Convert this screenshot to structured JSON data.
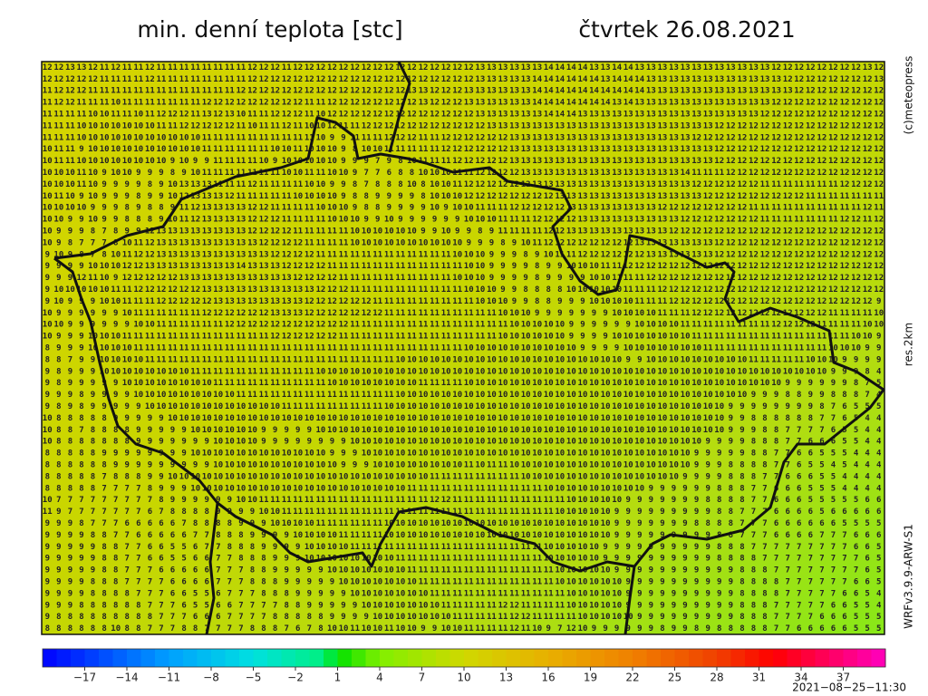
{
  "header": {
    "title": "min. denní teplota [stc]",
    "date": "čtvrtek 26.08.2021"
  },
  "side": {
    "copyright": "(c)meteopress",
    "resolution": "res.2km",
    "model": "WRFv3.9.9-ARW-S1"
  },
  "footer": {
    "timestamp": "2021−08−25−11:30"
  },
  "colorbar": {
    "range": [
      -20,
      40
    ],
    "stops": [
      [
        -20,
        "#0000ff"
      ],
      [
        -11,
        "#00a0ff"
      ],
      [
        -5,
        "#00e0e0"
      ],
      [
        0,
        "#00f080"
      ],
      [
        1,
        "#00e000"
      ],
      [
        4,
        "#80f000"
      ],
      [
        10,
        "#d0d800"
      ],
      [
        16,
        "#e8b000"
      ],
      [
        22,
        "#f08000"
      ],
      [
        28,
        "#f04000"
      ],
      [
        32,
        "#ff0000"
      ],
      [
        40,
        "#ff00c0"
      ]
    ],
    "ticks": [
      {
        "value": -17,
        "label": "−17"
      },
      {
        "value": -14,
        "label": "−14"
      },
      {
        "value": -11,
        "label": "−11"
      },
      {
        "value": -8,
        "label": "−8"
      },
      {
        "value": -5,
        "label": "−5"
      },
      {
        "value": -2,
        "label": "−2"
      },
      1,
      4,
      7,
      10,
      13,
      16,
      19,
      22,
      25,
      28,
      31,
      34,
      37
    ]
  },
  "grid": {
    "rows": [
      "12 12 13 13 12 11 12 11 11 12 11 11 11 11 11 11 11 11 12 12 12 11 12 12 12 12 12 12 12 12 12 12 12 12 12 12 12 12 13 13 13 13 13 13 14 14 14 14 13 13 14 14 13 13 13 13 13 13 13 13 13 13 13 13 12 12 12 12 12 12 12 12 13 12",
      "12 12 12 12 12 11 11 11 11 12 11 11 11 11 11 11 11 11 12 12 12 12 12 12 12 12 12 12 12 12 12 12 12 12 12 12 12 12 13 13 13 13 13 14 14 14 14 14 14 13 14 14 14 13 13 13 13 13 13 13 13 13 13 13 13 12 12 12 12 12 12 12 12 13",
      "11 12 12 12 11 11 11 11 11 11 11 11 11 11 11 11 11 12 12 12 12 12 12 12 12 12 12 12 12 12 12 12 13 13 12 12 12 13 13 13 13 13 13 14 14 14 14 14 14 14 14 14 14 13 13 13 13 13 13 13 13 13 13 13 13 13 12 12 12 12 12 12 12 12",
      "11 12 12 11 11 11 10 11 11 11 11 11 11 11 12 12 12 12 12 12 12 12 12 11 11 12 12 12 12 12 12 12 12 13 12 12 12 13 13 13 13 13 13 14 14 14 14 14 14 14 13 14 13 13 13 13 13 13 13 13 13 13 13 13 12 12 12 12 12 12 12 12 12 12",
      "11 11 11 11 10 10 11 11 10 11 12 12 12 11 13 12 13 10 11 11 12 12 12 11 10 12 12 12 12 12 12 12 12 12 12 12 12 12 13 13 13 13 13 13 14 14 14 13 13 13 13 13 13 13 13 13 13 13 13 13 13 13 13 12 12 12 12 12 12 12 12 12 12 12",
      "11 11 11 10 10 10 10 10 10 10 11 11 12 12 12 12 12 11 10 11 11 12 11 10 10 12 11 11 12 12 12 12 12 12 12 12 12 12 12 13 13 13 13 13 13 13 13 13 13 13 13 13 13 13 13 13 13 13 13 12 12 12 12 12 12 12 12 12 12 12 12 12 12 12",
      "11 11 11 10 10 10 10 10 10 10 10 10 10 10 11 11 11 11 11 11 11 11 11 11 10 9 9 11 11 11 12 12 12 11 11 12 12 12 12 12 12 13 13 13 13 13 13 13 13 13 13 13 13 13 13 13 13 12 12 12 12 12 12 12 12 12 12 12 12 12 12 12 12 12",
      "10 11 11 9 10 10 10 10 10 10 10 10 10 10 11 11 11 11 11 11 10 10 11 10 10 10 9 8 10 10 11 11 11 11 11 12 12 12 12 12 12 13 13 13 13 13 13 13 13 13 13 13 13 13 13 13 13 13 13 12 12 12 12 12 12 12 12 12 12 12 12 12 12 12",
      "10 11 11 10 10 10 10 10 10 10 10 9 10 9 9 11 11 11 11 10 9 10 10 10 10 10 9 9 9 7 9 8 10 11 11 11 12 12 12 12 12 13 13 13 13 13 13 13 13 13 13 13 13 13 13 13 13 13 13 12 12 12 12 12 12 12 12 12 12 12 12 12 12 12",
      "10 10 10 11 10 9 10 10 9 9 9 8 9 10 11 11 11 11 11 11 11 10 10 11 11 10 10 9 7 7 6 8 8 10 10 10 11 11 12 12 12 12 13 13 13 13 13 13 13 13 13 13 13 13 13 13 14 11 11 11 12 12 12 12 12 12 12 12 12 12 12 12 12 12",
      "10 10 10 11 10 9 9 9 9 8 9 10 13 13 13 11 11 11 12 11 11 11 11 10 10 9 9 8 7 8 8 8 10 8 10 10 11 12 12 12 12 12 12 13 13 13 13 13 13 13 13 13 13 13 13 13 13 12 12 12 12 12 12 11 11 11 11 11 11 11 12 12 12 12",
      "10 11 10 9 10 9 9 9 8 9 9 10 12 13 13 13 12 11 11 11 11 11 10 10 10 10 9 8 8 9 9 9 9 8 10 10 10 12 12 12 12 12 12 12 12 13 13 13 13 13 13 13 13 13 13 13 13 13 12 12 12 12 12 12 12 12 12 11 11 11 11 11 11 11",
      "10 10 10 10 9 9 9 8 9 8 8 9 11 12 13 13 13 13 12 12 11 11 11 11 10 10 10 9 8 8 9 9 9 9 10 9 10 10 11 11 11 12 12 12 12 12 13 13 13 13 13 13 13 13 12 12 12 12 12 12 12 12 11 11 11 11 11 11 11 11 11 11 12 11",
      "10 10 9 9 10 9 9 8 8 8 9 10 11 12 13 13 13 13 12 12 12 11 11 11 11 10 10 10 9 9 10 9 9 9 9 9 9 10 10 10 11 11 11 12 12 12 12 13 13 13 13 13 13 13 13 13 12 12 12 12 12 12 12 11 11 11 11 11 11 11 12 12 11 12",
      "10 9 9 9 8 7 8 9 9 12 13 13 13 13 13 13 13 13 12 12 12 12 11 11 11 11 11 10 10 10 10 10 10 9 9 10 9 9 8 9 11 11 11 11 12 12 13 13 13 13 13 13 13 13 13 12 12 12 12 12 12 12 12 12 12 12 12 12 12 12 12 12 12 12",
      "10 9 8 7 7 7 8 10 11 12 13 13 13 13 13 13 13 13 13 12 12 12 12 11 11 11 11 10 10 10 10 10 10 10 10 10 10 9 9 9 8 9 10 11 12 12 12 12 12 12 12 12 13 13 13 13 13 13 13 12 12 12 12 12 12 12 12 12 12 12 12 12 12 12",
      "9 10 9 8 7 8 10 11 12 12 13 13 13 13 13 13 13 13 13 13 12 12 12 12 11 11 11 11 11 11 11 11 11 11 11 11 10 10 10 9 9 9 8 9 10 11 11 12 12 12 12 12 12 13 13 13 13 13 13 12 12 12 12 12 12 12 12 12 12 12 12 12 12 12",
      "9 9 9 9 10 10 10 12 12 13 13 13 13 13 13 13 13 14 13 13 13 12 12 12 12 11 11 11 11 11 11 11 11 11 11 11 11 10 10 9 9 9 9 8 9 9 10 10 10 11 11 12 12 12 12 12 12 12 12 12 12 12 12 12 12 12 12 12 12 12 12 12 12 12",
      "9 9 9 12 11 10 9 12 12 12 12 12 13 13 13 13 13 13 13 13 13 13 12 12 12 12 11 11 11 11 11 11 11 11 11 11 10 10 10 9 9 9 9 8 9 9 9 9 10 10 11 11 11 12 12 12 12 12 12 12 12 12 12 12 12 12 12 12 12 12 12 12 12 12",
      "9 10 10 10 10 10 11 11 12 12 12 12 12 12 13 13 13 13 13 13 13 13 13 13 12 12 12 11 11 11 11 11 11 11 11 11 11 10 10 10 9 9 8 8 8 8 10 10 10 10 10 11 11 11 12 12 12 12 12 12 12 12 12 12 12 12 12 12 12 12 12 12 12 12",
      "9 10 9 9 9 10 10 11 11 11 12 12 12 12 12 13 13 13 13 13 13 13 13 12 12 12 12 12 12 11 11 11 11 11 11 11 11 11 10 10 10 9 9 8 8 9 9 9 10 10 10 10 11 11 11 12 12 12 12 12 12 12 12 12 12 12 12 12 12 12 12 12 12 9",
      "10 9 9 9 9 9 9 10 11 11 11 11 11 11 12 12 12 12 12 12 13 13 13 12 12 12 12 12 12 12 11 11 11 11 11 11 11 11 11 11 10 10 10 9 9 9 9 9 9 9 10 10 10 10 11 11 11 12 12 12 12 12 12 12 12 12 12 12 12 11 11 11 11 10",
      "10 10 9 9 9 9 9 9 10 10 11 11 11 11 11 11 12 12 12 12 12 12 12 12 12 12 12 11 11 11 11 11 11 11 11 11 11 11 11 11 11 10 10 10 10 10 9 9 9 9 9 9 10 10 10 10 11 11 11 11 11 11 11 11 12 12 12 12 11 11 11 11 10 10",
      "10 9 9 9 10 10 10 11 11 11 11 11 11 11 11 11 11 11 11 11 12 12 12 12 12 12 11 11 11 11 11 11 11 11 11 11 11 11 11 11 10 10 10 10 10 10 9 9 9 9 10 10 10 10 10 10 10 11 11 11 11 11 11 11 11 11 11 11 11 11 11 10 10 9",
      "8 9 9 9 10 10 10 10 11 11 11 11 11 11 11 11 11 11 11 11 11 11 11 11 11 11 11 11 11 11 11 11 11 11 11 11 11 10 10 10 10 10 10 10 10 10 10 9 9 9 9 10 10 10 10 10 10 10 11 11 11 11 11 11 11 11 11 11 11 10 10 10 9 9",
      "8 8 7 9 9 10 10 10 10 11 11 11 11 11 11 11 11 11 11 11 11 11 11 11 11 11 11 11 11 11 11 10 10 10 10 10 10 10 10 10 10 10 10 10 10 10 10 10 10 10 10 9 9 10 10 10 10 10 10 10 10 10 11 11 11 11 11 10 10 10 9 9 9 9",
      "9 8 9 9 9 10 10 10 10 10 10 10 10 11 11 11 11 11 11 11 11 11 11 11 10 10 10 10 10 10 10 10 10 10 10 10 10 10 10 10 10 10 10 10 10 10 10 10 10 10 10 10 10 10 10 10 10 10 10 10 10 10 10 10 10 10 10 10 10 9 9 9 8 4",
      "9 8 9 9 9 9 9 10 10 10 10 10 10 10 10 11 11 11 11 11 11 11 11 11 11 10 10 10 10 10 10 10 10 11 11 11 11 10 10 10 10 10 10 10 10 10 10 10 10 10 10 10 10 10 10 10 10 10 10 10 10 10 10 10 10 9 9 9 9 9 9 8 7 5",
      "9 9 9 8 9 9 9 9 10 10 10 10 10 10 10 10 10 11 11 11 11 11 11 11 11 11 11 11 11 11 11 10 10 10 10 10 10 10 10 10 10 10 10 10 10 10 10 10 10 10 10 10 10 10 10 10 10 10 10 10 10 10 9 9 9 8 8 9 9 8 8 8 7 4",
      "9 8 9 8 9 9 9 9 9 10 10 10 10 10 10 10 10 10 10 10 10 11 11 11 11 11 11 11 11 11 10 10 10 10 10 10 10 10 10 10 10 10 10 10 10 10 10 10 10 10 10 10 10 10 10 10 10 10 10 10 9 9 9 9 9 9 9 9 8 7 6 5 5 5",
      "10 8 8 8 8 8 9 9 9 9 9 10 10 10 10 10 10 10 10 10 10 10 10 10 10 10 10 10 10 10 10 10 10 10 10 10 10 10 10 10 10 10 10 10 10 10 10 10 10 10 10 10 10 10 10 10 10 10 10 10 9 9 8 8 8 8 8 8 7 7 6 5 4 4",
      "10 8 8 7 8 8 8 8 9 9 9 9 9 10 10 10 10 10 10 9 9 9 9 9 10 10 10 10 10 10 10 10 10 10 10 10 10 10 10 10 10 10 10 10 10 10 10 10 10 10 10 10 10 10 10 10 10 10 10 10 9 9 9 8 8 7 7 7 7 6 5 5 4 4",
      "10 8 8 8 8 8 8 8 9 9 9 9 9 9 9 10 10 10 10 9 9 9 9 9 9 9 9 10 10 10 10 10 10 10 10 10 10 10 10 10 10 10 10 10 10 10 10 10 10 10 10 10 10 10 10 10 10 10 9 9 9 9 8 8 8 7 7 6 6 6 5 5 4 4",
      "8 8 8 8 8 9 9 9 9 9 9 9 9 10 10 10 10 10 10 10 10 10 10 10 10 9 9 9 10 10 10 10 10 10 10 10 10 10 10 10 10 10 10 10 10 10 10 10 10 10 10 10 10 10 10 10 10 9 9 9 9 9 8 8 7 7 6 6 5 5 5 4 4 4",
      "8 8 8 8 8 8 9 9 9 9 9 9 9 9 9 10 10 10 10 10 10 10 10 10 10 10 9 9 9 10 10 10 10 10 10 10 10 11 10 11 11 10 10 10 10 10 10 10 10 10 10 10 10 10 10 10 10 9 9 9 8 8 8 8 7 7 6 5 5 4 5 4 4 4",
      "8 8 8 8 8 7 8 8 8 9 9 10 10 10 10 10 10 10 10 10 10 10 10 10 10 10 10 10 10 10 10 10 10 10 11 11 11 11 11 11 11 11 10 10 10 10 10 10 10 10 10 10 10 10 10 10 9 9 9 9 8 8 8 7 7 6 6 6 5 5 4 4 4 4",
      "8 8 8 8 8 7 7 7 7 8 9 9 9 10 10 10 10 10 10 10 10 10 10 10 10 10 10 10 10 10 10 10 11 11 11 11 11 11 11 11 11 11 11 11 10 10 10 10 10 10 10 10 10 9 9 9 9 9 9 8 8 8 7 7 6 6 6 5 5 5 4 4 4 4",
      "10 7 7 7 7 7 7 7 7 7 8 9 9 9 9 9 9 10 10 11 11 11 11 11 11 11 11 11 11 11 11 11 11 11 12 12 11 11 11 11 11 11 11 11 11 11 10 10 10 10 10 9 9 9 9 9 9 9 8 8 8 8 7 7 6 6 6 5 5 5 5 5 6 6",
      "11 9 7 7 7 7 7 7 7 6 7 8 8 8 8 9 9 9 9 10 10 11 11 11 11 11 11 11 11 11 11 11 11 11 11 11 11 11 11 11 11 11 11 11 11 10 10 10 10 10 9 9 9 9 9 9 9 9 9 8 8 7 7 7 6 6 6 6 5 6 6 6 6 6",
      "9 9 9 8 7 7 7 6 6 6 6 6 7 8 8 8 8 9 9 9 10 10 10 10 11 11 11 11 11 11 10 10 10 10 10 10 10 10 10 10 10 10 10 10 10 10 10 10 10 10 9 9 9 9 9 9 9 8 8 8 8 7 7 7 6 6 6 6 6 6 5 5 5 5",
      "9 9 9 9 8 8 7 7 6 6 6 6 6 7 7 8 8 8 9 9 9 9 10 10 10 10 11 11 11 11 10 10 10 10 10 10 10 10 10 10 10 10 10 10 10 10 10 10 10 10 9 9 9 9 9 9 9 9 9 8 8 7 7 7 6 6 6 6 7 7 7 6 6 6",
      "9 9 9 9 9 8 8 7 7 6 6 5 5 6 7 7 8 8 8 9 9 9 9 10 10 10 10 11 11 11 11 11 11 11 11 11 11 11 11 11 11 11 11 11 10 10 10 10 10 9 9 9 9 9 9 9 9 9 9 8 8 8 7 7 7 7 7 7 7 7 7 6 6 5",
      "9 9 9 9 9 8 8 7 7 6 6 5 5 6 6 7 7 8 8 8 9 9 9 10 10 10 10 10 10 10 10 11 11 11 11 11 11 11 11 11 11 11 11 11 10 10 10 10 10 9 9 9 9 9 9 9 9 9 9 8 8 8 8 7 7 7 7 7 7 7 7 7 6 5",
      "9 9 9 9 9 8 8 7 7 7 6 6 6 6 6 7 7 7 8 8 9 9 9 9 9 10 10 10 10 10 10 10 11 11 11 11 11 11 11 11 11 11 11 11 11 10 10 10 10 10 9 9 9 9 9 9 9 9 9 9 9 8 8 8 7 7 7 7 7 7 7 7 6 5",
      "9 9 9 9 8 8 8 7 7 7 7 6 6 6 6 7 7 7 8 8 8 9 9 9 9 9 10 10 10 10 10 10 10 11 11 11 11 11 11 11 11 11 11 11 11 10 10 10 10 10 10 9 9 9 9 9 9 9 9 9 9 8 8 8 8 7 7 7 7 7 7 6 6 5",
      "9 9 9 9 8 8 8 8 7 7 7 6 6 5 5 6 7 7 7 8 8 8 9 9 9 9 9 10 10 10 10 10 10 10 11 11 11 11 11 11 11 11 11 11 11 11 10 10 10 10 10 9 9 9 9 9 9 9 9 9 9 8 8 8 8 7 7 7 7 7 6 6 5 4",
      "9 9 9 8 8 8 8 8 8 7 7 7 6 5 5 6 6 7 7 7 7 8 8 9 9 9 9 9 10 10 10 10 10 10 10 11 11 11 11 11 12 12 11 11 11 11 10 10 10 10 10 9 9 9 9 9 9 9 9 9 9 8 8 8 7 7 7 7 7 6 6 5 5 4",
      "9 8 8 8 8 8 8 8 8 8 7 7 7 6 6 6 7 7 7 7 8 8 8 8 8 9 9 9 9 10 10 10 10 10 10 10 11 11 11 11 11 12 12 11 11 11 11 10 10 10 10 10 9 9 9 9 9 9 9 9 9 8 8 8 7 7 7 7 6 6 6 5 5 5",
      "8 8 8 8 8 8 10 8 8 7 7 7 8 8 7 7 7 7 8 8 8 7 6 7 8 10 10 11 10 10 11 10 10 9 9 10 10 11 11 11 11 12 11 10 9 7 12 10 9 9 9 9 9 9 8 9 9 8 9 8 8 8 8 8 7 7 6 6 6 6 6 5 5 5"
    ]
  }
}
